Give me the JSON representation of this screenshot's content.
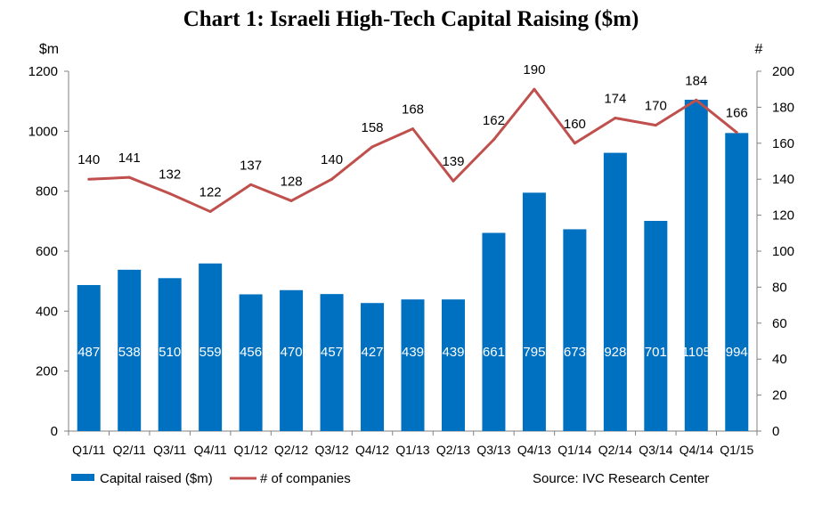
{
  "chart_data": {
    "type": "bar",
    "title": "Chart 1: Israeli High-Tech Capital Raising ($m)",
    "categories": [
      "Q1/11",
      "Q2/11",
      "Q3/11",
      "Q4/11",
      "Q1/12",
      "Q2/12",
      "Q3/12",
      "Q4/12",
      "Q1/13",
      "Q2/13",
      "Q3/13",
      "Q4/13",
      "Q1/14",
      "Q2/14",
      "Q3/14",
      "Q4/14",
      "Q1/15"
    ],
    "series": [
      {
        "name": "Capital raised ($m)",
        "type": "bar",
        "axis": "left",
        "color": "#0070C0",
        "values": [
          487,
          538,
          510,
          559,
          456,
          470,
          457,
          427,
          439,
          439,
          661,
          795,
          673,
          928,
          701,
          1105,
          994
        ]
      },
      {
        "name": "# of companies",
        "type": "line",
        "axis": "right",
        "color": "#C0504D",
        "values": [
          140,
          141,
          132,
          122,
          137,
          128,
          140,
          158,
          168,
          139,
          162,
          190,
          160,
          174,
          170,
          184,
          166
        ]
      }
    ],
    "y_left": {
      "label": "$m",
      "min": 0,
      "max": 1200,
      "ticks": [
        0,
        200,
        400,
        600,
        800,
        1000,
        1200
      ]
    },
    "y_right": {
      "label": "#",
      "min": 0,
      "max": 200,
      "ticks": [
        0,
        20,
        40,
        60,
        80,
        100,
        120,
        140,
        160,
        180,
        200
      ]
    },
    "grid": false,
    "legend_position": "bottom-left",
    "source": "Source: IVC Research Center"
  }
}
